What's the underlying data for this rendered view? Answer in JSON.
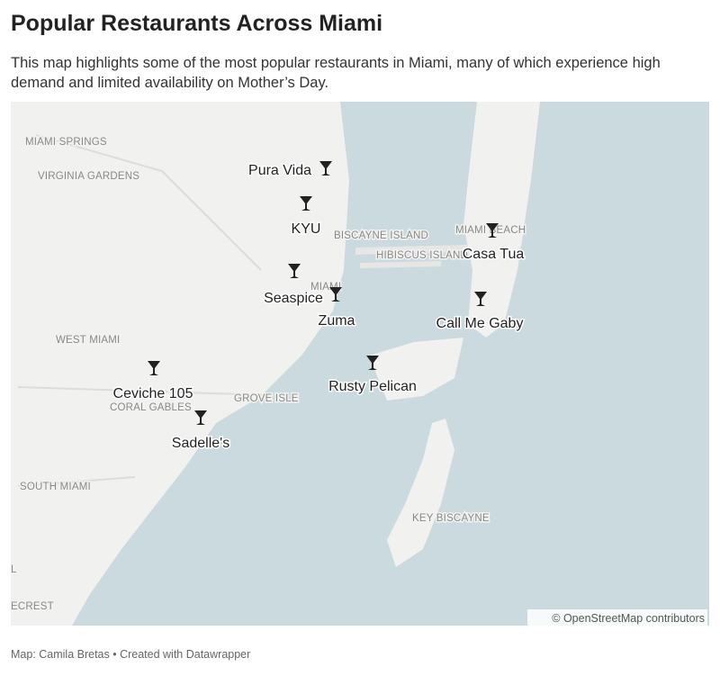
{
  "header": {
    "title": "Popular Restaurants Across Miami",
    "subtitle": "This map highlights some of the most popular restaurants in Miami, many of which experience high demand and limited availability on Mother’s Day."
  },
  "map": {
    "places": [
      "MIAMI SPRINGS",
      "VIRGINIA GARDENS",
      "BISCAYNE ISLAND",
      "MIAMI BEACH",
      "HIBISCUS ISLAND",
      "MIAMI",
      "WEST MIAMI",
      "CORAL GABLES",
      "GROVE ISLE",
      "SOUTH MIAMI",
      "KEY BISCAYNE",
      "L",
      "ECREST"
    ],
    "restaurants": [
      "Pura Vida",
      "KYU",
      "Seaspice",
      "Zuma",
      "Casa Tua",
      "Call Me Gaby",
      "Rusty Pelican",
      "Ceviche 105",
      "Sadelle's"
    ],
    "attribution": "© OpenStreetMap contributors"
  },
  "footer": "Map: Camila Bretas • Created with Datawrapper"
}
